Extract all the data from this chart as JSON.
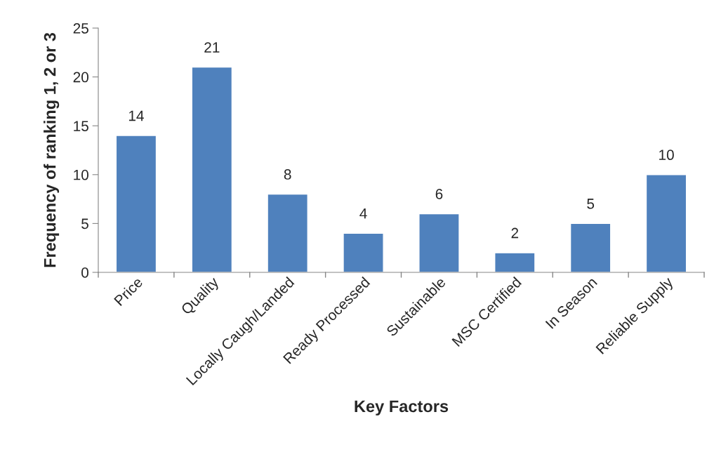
{
  "chart_data": {
    "type": "bar",
    "xlabel": "Key Factors",
    "ylabel": "Frequency of ranking 1, 2 or 3",
    "categories": [
      "Price",
      "Quality",
      "Locally Caugh/Landed",
      "Ready Processed",
      "Sustainable",
      "MSC Certified",
      "In Season",
      "Reliable Supply"
    ],
    "values": [
      14,
      21,
      8,
      4,
      6,
      2,
      5,
      10
    ],
    "color": "#4f81bd",
    "ylim": [
      0,
      25
    ],
    "yticks": [
      0,
      5,
      10,
      15,
      20,
      25
    ],
    "grid": false,
    "data_labels": true
  }
}
